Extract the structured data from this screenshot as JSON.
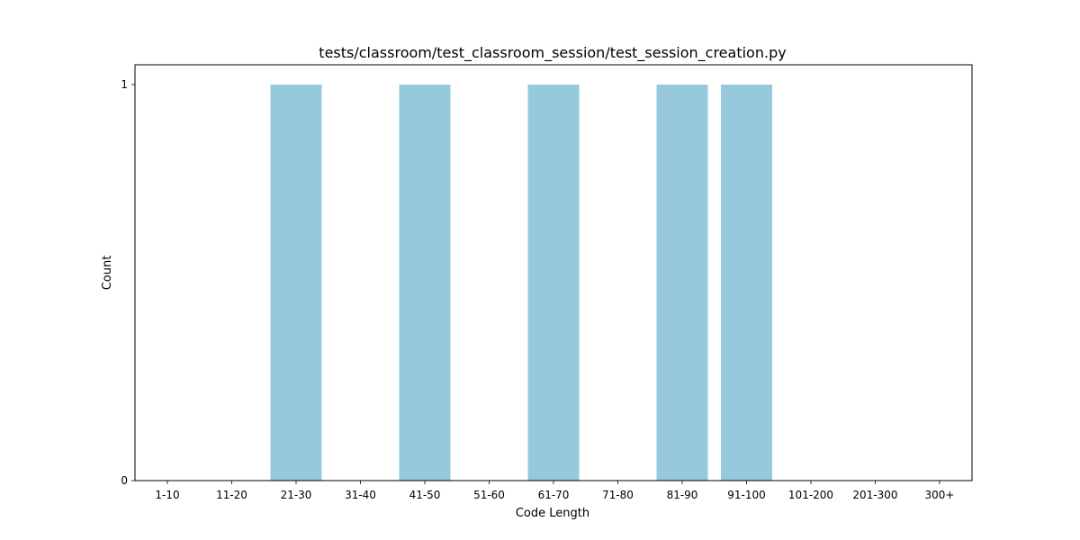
{
  "chart_data": {
    "type": "bar",
    "title": "tests/classroom/test_classroom_session/test_session_creation.py",
    "xlabel": "Code Length",
    "ylabel": "Count",
    "categories": [
      "1-10",
      "11-20",
      "21-30",
      "31-40",
      "41-50",
      "51-60",
      "61-70",
      "71-80",
      "81-90",
      "91-100",
      "101-200",
      "201-300",
      "300+"
    ],
    "values": [
      0,
      0,
      1,
      0,
      1,
      0,
      1,
      0,
      1,
      1,
      0,
      0,
      0
    ],
    "yticks": [
      0,
      1
    ],
    "ylim": [
      0,
      1.05
    ],
    "grid": false,
    "bar_color": "#96c9dc"
  }
}
